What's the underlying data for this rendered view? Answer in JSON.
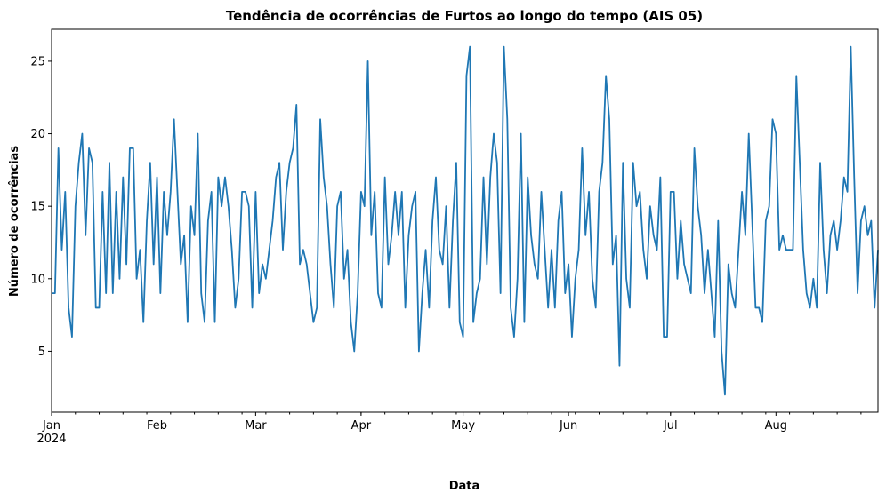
{
  "chart_data": {
    "type": "line",
    "title": "Tendência de ocorrências de Furtos ao longo do tempo (AIS 05)",
    "xlabel": "Data",
    "ylabel": "Número de ocorrências",
    "x_start": "2024-01-01",
    "x_end": "2024-08-31",
    "xlim": [
      "2024-01-01",
      "2024-08-31"
    ],
    "ylim": [
      0.8,
      27.2
    ],
    "yticks": [
      5,
      10,
      15,
      20,
      25
    ],
    "xticks": [
      {
        "date": "2024-01-01",
        "label": "Jan",
        "sublabel": "2024"
      },
      {
        "date": "2024-02-01",
        "label": "Feb"
      },
      {
        "date": "2024-03-01",
        "label": "Mar"
      },
      {
        "date": "2024-04-01",
        "label": "Apr"
      },
      {
        "date": "2024-05-01",
        "label": "May"
      },
      {
        "date": "2024-06-01",
        "label": "Jun"
      },
      {
        "date": "2024-07-01",
        "label": "Jul"
      },
      {
        "date": "2024-08-01",
        "label": "Aug"
      }
    ],
    "minor_ticks": "weekly",
    "grid": false,
    "legend": "none",
    "color": "#1f77b4",
    "series": [
      {
        "values": [
          9,
          9,
          19,
          12,
          16,
          8,
          6,
          15,
          18,
          20,
          13,
          19,
          18,
          8,
          8,
          16,
          9,
          18,
          9,
          16,
          10,
          17,
          11,
          19,
          19,
          10,
          12,
          7,
          14,
          18,
          11,
          17,
          9,
          16,
          13,
          16,
          21,
          16,
          11,
          13,
          7,
          15,
          13,
          20,
          9,
          7,
          14,
          16,
          7,
          17,
          15,
          17,
          15,
          12,
          8,
          10,
          16,
          16,
          15,
          8,
          16,
          9,
          11,
          10,
          12,
          14,
          17,
          18,
          12,
          16,
          18,
          19,
          22,
          11,
          12,
          11,
          9,
          7,
          8,
          21,
          17,
          15,
          11,
          8,
          15,
          16,
          10,
          12,
          7,
          5,
          9,
          16,
          15,
          25,
          13,
          16,
          9,
          8,
          17,
          11,
          13,
          16,
          13,
          16,
          8,
          13,
          15,
          16,
          5,
          9,
          12,
          8,
          14,
          17,
          12,
          11,
          15,
          8,
          14,
          18,
          7,
          6,
          24,
          26,
          7,
          9,
          10,
          17,
          11,
          17,
          20,
          18,
          9,
          26,
          21,
          8,
          6,
          10,
          20,
          7,
          17,
          13,
          11,
          10,
          16,
          12,
          8,
          12,
          8,
          14,
          16,
          9,
          11,
          6,
          10,
          12,
          19,
          13,
          16,
          10,
          8,
          16,
          18,
          24,
          21,
          11,
          13,
          4,
          18,
          10,
          8,
          18,
          15,
          16,
          12,
          10,
          15,
          13,
          12,
          17,
          6,
          6,
          16,
          16,
          10,
          14,
          11,
          10,
          9,
          19,
          15,
          13,
          9,
          12,
          9,
          6,
          14,
          5,
          2,
          11,
          9,
          8,
          12,
          16,
          13,
          20,
          14,
          8,
          8,
          7,
          14,
          15,
          21,
          20,
          12,
          13,
          12,
          12,
          12,
          24,
          18,
          12,
          9,
          8,
          10,
          8,
          18,
          12,
          9,
          13,
          14,
          12,
          14,
          17,
          16,
          26,
          17,
          9,
          14,
          15,
          13,
          14,
          8,
          12
        ]
      }
    ]
  }
}
